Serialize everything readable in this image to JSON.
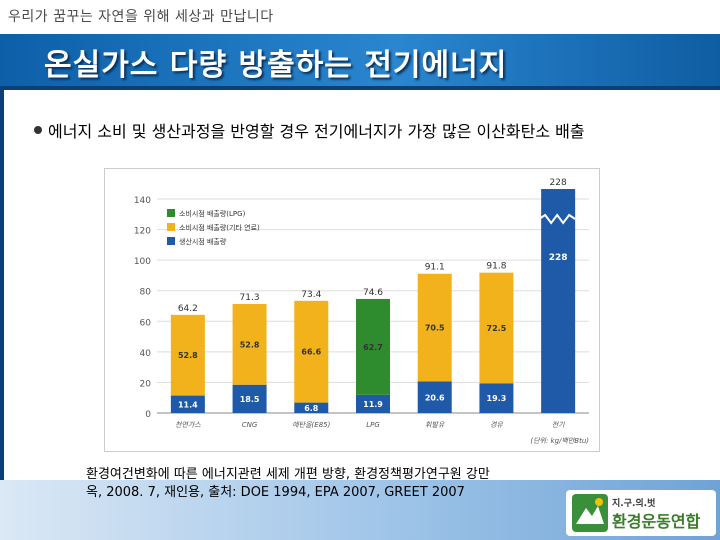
{
  "header": {
    "slogan": "우리가 꿈꾸는 자연을 위해 세상과 만납니다",
    "title": "온실가스 다량 방출하는 전기에너지"
  },
  "bullet": {
    "text": "에너지 소비 및 생산과정을 반영할 경우 전기에너지가 가장 많은 이산화탄소 배출"
  },
  "source": {
    "line1": "환경여건변화에 따른 에너지관련 세제 개편 방향, 환경정책평가연구원 강만",
    "line2": "옥, 2008. 7,  재인용, 출처: DOE 1994, EPA 2007, GREET 2007"
  },
  "logo": {
    "small_text": "지.구.의.벗",
    "big_text": "환경운동연합"
  },
  "colors": {
    "generation": "#1e5aa8",
    "consumption_other": "#f2b21c",
    "consumption_lpg": "#2e8b2e",
    "title_bar": "#1a6fba"
  },
  "chart_data": {
    "type": "bar",
    "stacked": true,
    "categories": [
      "천연가스",
      "CNG",
      "에탄올(E85)",
      "LPG",
      "휘발유",
      "경유",
      "전기"
    ],
    "series": [
      {
        "name": "생산시점 배출량",
        "values": [
          11.4,
          18.5,
          6.8,
          11.9,
          20.6,
          19.3,
          228
        ]
      },
      {
        "name": "소비시점 배출량(기타 연료)",
        "values": [
          52.8,
          52.8,
          66.6,
          null,
          70.5,
          72.5,
          null
        ]
      },
      {
        "name": "소비시점 배출량(LPG)",
        "values": [
          null,
          null,
          null,
          62.7,
          null,
          null,
          null
        ]
      }
    ],
    "totals": [
      "64.2",
      "71.3",
      "73.4",
      "74.6",
      "91.1",
      "91.8",
      "228"
    ],
    "yticks": [
      0,
      20,
      40,
      60,
      80,
      100,
      120,
      140
    ],
    "ylim": [
      0,
      140
    ],
    "axis_break": true,
    "unit_label": "(단위: kg/백만Btu)",
    "legend_position": "top-left"
  }
}
